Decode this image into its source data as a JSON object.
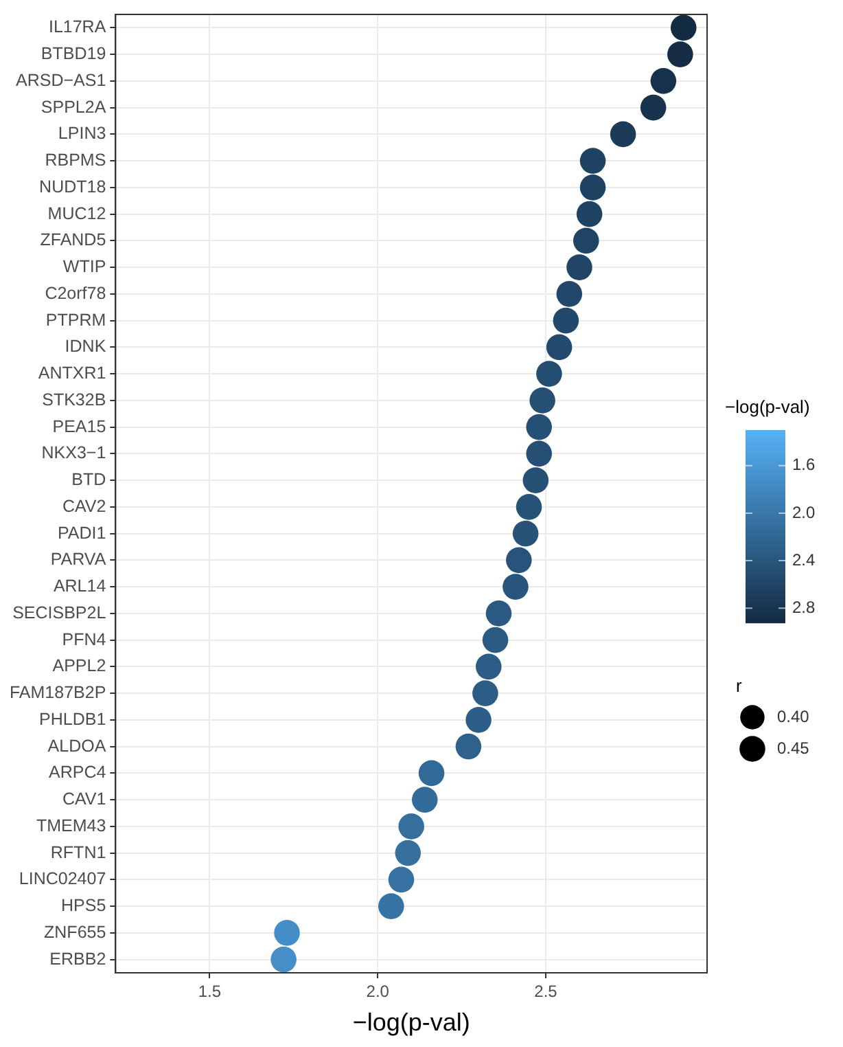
{
  "chart_data": {
    "type": "bubble",
    "xlabel": "−log(p-val)",
    "clabel": "−log(p-val)",
    "legend_title": "r",
    "categories": [
      "IL17RA",
      "BTBD19",
      "ARSD−AS1",
      "SPPL2A",
      "LPIN3",
      "RBPMS",
      "NUDT18",
      "MUC12",
      "ZFAND5",
      "WTIP",
      "C2orf78",
      "PTPRM",
      "IDNK",
      "ANTXR1",
      "STK32B",
      "PEA15",
      "NKX3−1",
      "BTD",
      "CAV2",
      "PADI1",
      "PARVA",
      "ARL14",
      "SECISBP2L",
      "PFN4",
      "APPL2",
      "FAM187B2P",
      "PHLDB1",
      "ALDOA",
      "ARPC4",
      "CAV1",
      "TMEM43",
      "RFTN1",
      "LINC02407",
      "HPS5",
      "ZNF655",
      "ERBB2"
    ],
    "values": [
      2.91,
      2.9,
      2.85,
      2.82,
      2.73,
      2.64,
      2.64,
      2.63,
      2.62,
      2.6,
      2.57,
      2.56,
      2.54,
      2.51,
      2.49,
      2.48,
      2.48,
      2.47,
      2.45,
      2.44,
      2.42,
      2.41,
      2.36,
      2.35,
      2.33,
      2.32,
      2.3,
      2.27,
      2.16,
      2.14,
      2.1,
      2.09,
      2.07,
      2.04,
      1.73,
      1.72
    ],
    "cvalues": [
      2.91,
      2.9,
      2.85,
      2.82,
      2.73,
      2.64,
      2.64,
      2.63,
      2.62,
      2.6,
      2.57,
      2.56,
      2.54,
      2.51,
      2.49,
      2.48,
      2.48,
      2.47,
      2.45,
      2.44,
      2.42,
      2.41,
      2.36,
      2.35,
      2.33,
      2.32,
      2.3,
      2.27,
      2.16,
      2.14,
      2.1,
      2.09,
      2.07,
      2.04,
      1.73,
      1.72
    ],
    "sizes": [
      0.45,
      0.45,
      0.45,
      0.45,
      0.45,
      0.45,
      0.45,
      0.45,
      0.45,
      0.45,
      0.45,
      0.45,
      0.45,
      0.45,
      0.45,
      0.45,
      0.45,
      0.45,
      0.45,
      0.45,
      0.45,
      0.45,
      0.45,
      0.45,
      0.45,
      0.45,
      0.45,
      0.45,
      0.45,
      0.45,
      0.45,
      0.45,
      0.45,
      0.45,
      0.45,
      0.45
    ],
    "size_legend": [
      {
        "value": 0.4,
        "label": "0.40"
      },
      {
        "value": 0.45,
        "label": "0.45"
      }
    ],
    "orientation": "horizontal",
    "xlim": [
      1.22,
      2.98
    ],
    "xticks": [
      {
        "value": 1.5,
        "label": "1.5"
      },
      {
        "value": 2,
        "label": "2.0"
      },
      {
        "value": 2.5,
        "label": "2.5"
      }
    ],
    "clim": [
      1.3,
      2.92
    ],
    "cticks": [
      {
        "value": 1.6,
        "label": "1.6"
      },
      {
        "value": 2,
        "label": "2.0"
      },
      {
        "value": 2.4,
        "label": "2.4"
      },
      {
        "value": 2.8,
        "label": "2.8"
      }
    ],
    "grid": true
  }
}
